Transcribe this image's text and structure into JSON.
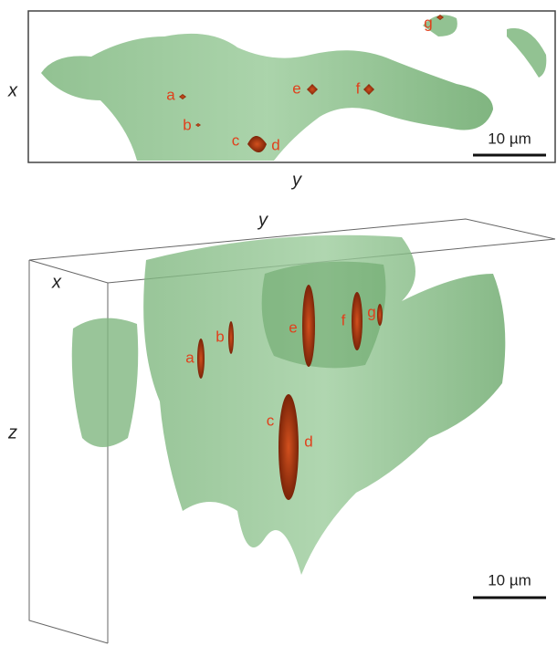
{
  "top_panel": {
    "axis_labels": {
      "vertical": "x",
      "horizontal": "y"
    },
    "scale_bar": "10 µm",
    "markers": [
      "a",
      "b",
      "c",
      "d",
      "e",
      "f",
      "g"
    ]
  },
  "bottom_panel": {
    "axis_labels": {
      "top": "y",
      "side": "x",
      "vertical": "z"
    },
    "scale_bar": "10 µm",
    "markers": [
      "a",
      "b",
      "c",
      "d",
      "e",
      "f",
      "g"
    ]
  }
}
